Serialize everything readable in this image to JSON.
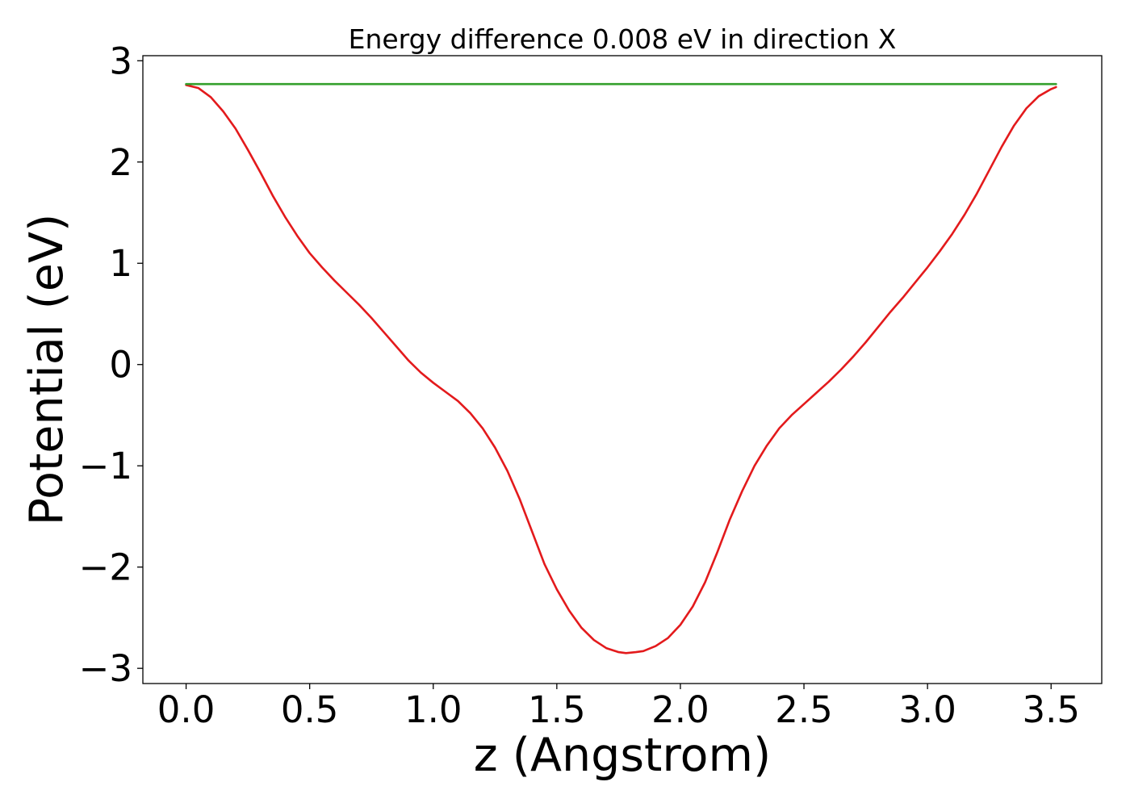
{
  "chart_data": {
    "type": "line",
    "title": "Energy difference 0.008 eV in direction X",
    "xlabel": "z (Angstrom)",
    "ylabel": "Potential (eV)",
    "xlim": [
      -0.175,
      3.705
    ],
    "ylim": [
      -3.15,
      3.05
    ],
    "xticks": [
      0.0,
      0.5,
      1.0,
      1.5,
      2.0,
      2.5,
      3.0,
      3.5
    ],
    "xtick_labels": [
      "0.0",
      "0.5",
      "1.0",
      "1.5",
      "2.0",
      "2.5",
      "3.0",
      "3.5"
    ],
    "yticks": [
      -3,
      -2,
      -1,
      0,
      1,
      2,
      3
    ],
    "ytick_labels": [
      "−3",
      "−2",
      "−1",
      "0",
      "1",
      "2",
      "3"
    ],
    "grid": false,
    "series": [
      {
        "color": "#e31a1c",
        "x": [
          0.0,
          0.05,
          0.1,
          0.15,
          0.2,
          0.25,
          0.3,
          0.35,
          0.4,
          0.45,
          0.5,
          0.55,
          0.6,
          0.65,
          0.7,
          0.75,
          0.8,
          0.85,
          0.9,
          0.95,
          1.0,
          1.05,
          1.1,
          1.15,
          1.2,
          1.25,
          1.3,
          1.35,
          1.4,
          1.45,
          1.5,
          1.55,
          1.6,
          1.65,
          1.7,
          1.75,
          1.78,
          1.82,
          1.85,
          1.9,
          1.95,
          2.0,
          2.05,
          2.1,
          2.15,
          2.2,
          2.25,
          2.3,
          2.35,
          2.4,
          2.45,
          2.5,
          2.55,
          2.6,
          2.65,
          2.7,
          2.75,
          2.8,
          2.85,
          2.9,
          2.95,
          3.0,
          3.05,
          3.1,
          3.15,
          3.2,
          3.25,
          3.3,
          3.35,
          3.4,
          3.45,
          3.5,
          3.52
        ],
        "y": [
          2.76,
          2.73,
          2.64,
          2.5,
          2.33,
          2.12,
          1.9,
          1.67,
          1.46,
          1.27,
          1.1,
          0.96,
          0.83,
          0.71,
          0.59,
          0.46,
          0.32,
          0.18,
          0.04,
          -0.08,
          -0.18,
          -0.27,
          -0.36,
          -0.48,
          -0.63,
          -0.82,
          -1.05,
          -1.33,
          -1.65,
          -1.97,
          -2.22,
          -2.43,
          -2.6,
          -2.72,
          -2.8,
          -2.84,
          -2.85,
          -2.84,
          -2.83,
          -2.78,
          -2.7,
          -2.57,
          -2.39,
          -2.15,
          -1.85,
          -1.53,
          -1.25,
          -1.0,
          -0.8,
          -0.63,
          -0.5,
          -0.39,
          -0.28,
          -0.17,
          -0.05,
          0.08,
          0.22,
          0.37,
          0.52,
          0.66,
          0.81,
          0.96,
          1.12,
          1.29,
          1.48,
          1.69,
          1.92,
          2.15,
          2.36,
          2.53,
          2.65,
          2.72,
          2.74
        ]
      },
      {
        "color": "#33a02c",
        "x": [
          0.0,
          3.52
        ],
        "y": [
          2.77,
          2.77
        ]
      }
    ]
  }
}
